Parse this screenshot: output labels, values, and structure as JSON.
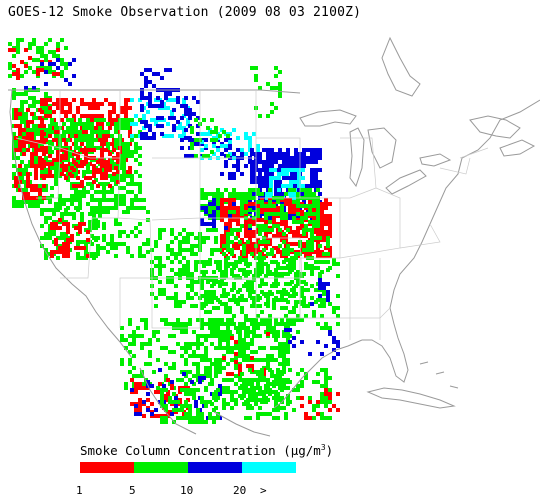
{
  "title": "GOES-12 Smoke Observation (2009 08 03  2100Z)",
  "legend": {
    "title_main": "Smoke Column Concentration (",
    "title_unit_mu": "μ",
    "title_unit_rest": "g/m",
    "title_unit_exp": "3",
    "title_close": ")",
    "classes": [
      {
        "label": "1-5",
        "color": "#ff0000"
      },
      {
        "label": "5-10",
        "color": "#00ee00"
      },
      {
        "label": "10-20",
        "color": "#0000dd"
      },
      {
        "label": ">20",
        "color": "#00ffff"
      }
    ],
    "ticks": [
      "1",
      "5",
      "10",
      "20",
      ">"
    ]
  },
  "colors": {
    "low": "#ff0000",
    "mid": "#00ee00",
    "high": "#0000dd",
    "very_high": "#00ffff",
    "map_lines": "#9a9a9a"
  },
  "units": "μg/m³"
}
